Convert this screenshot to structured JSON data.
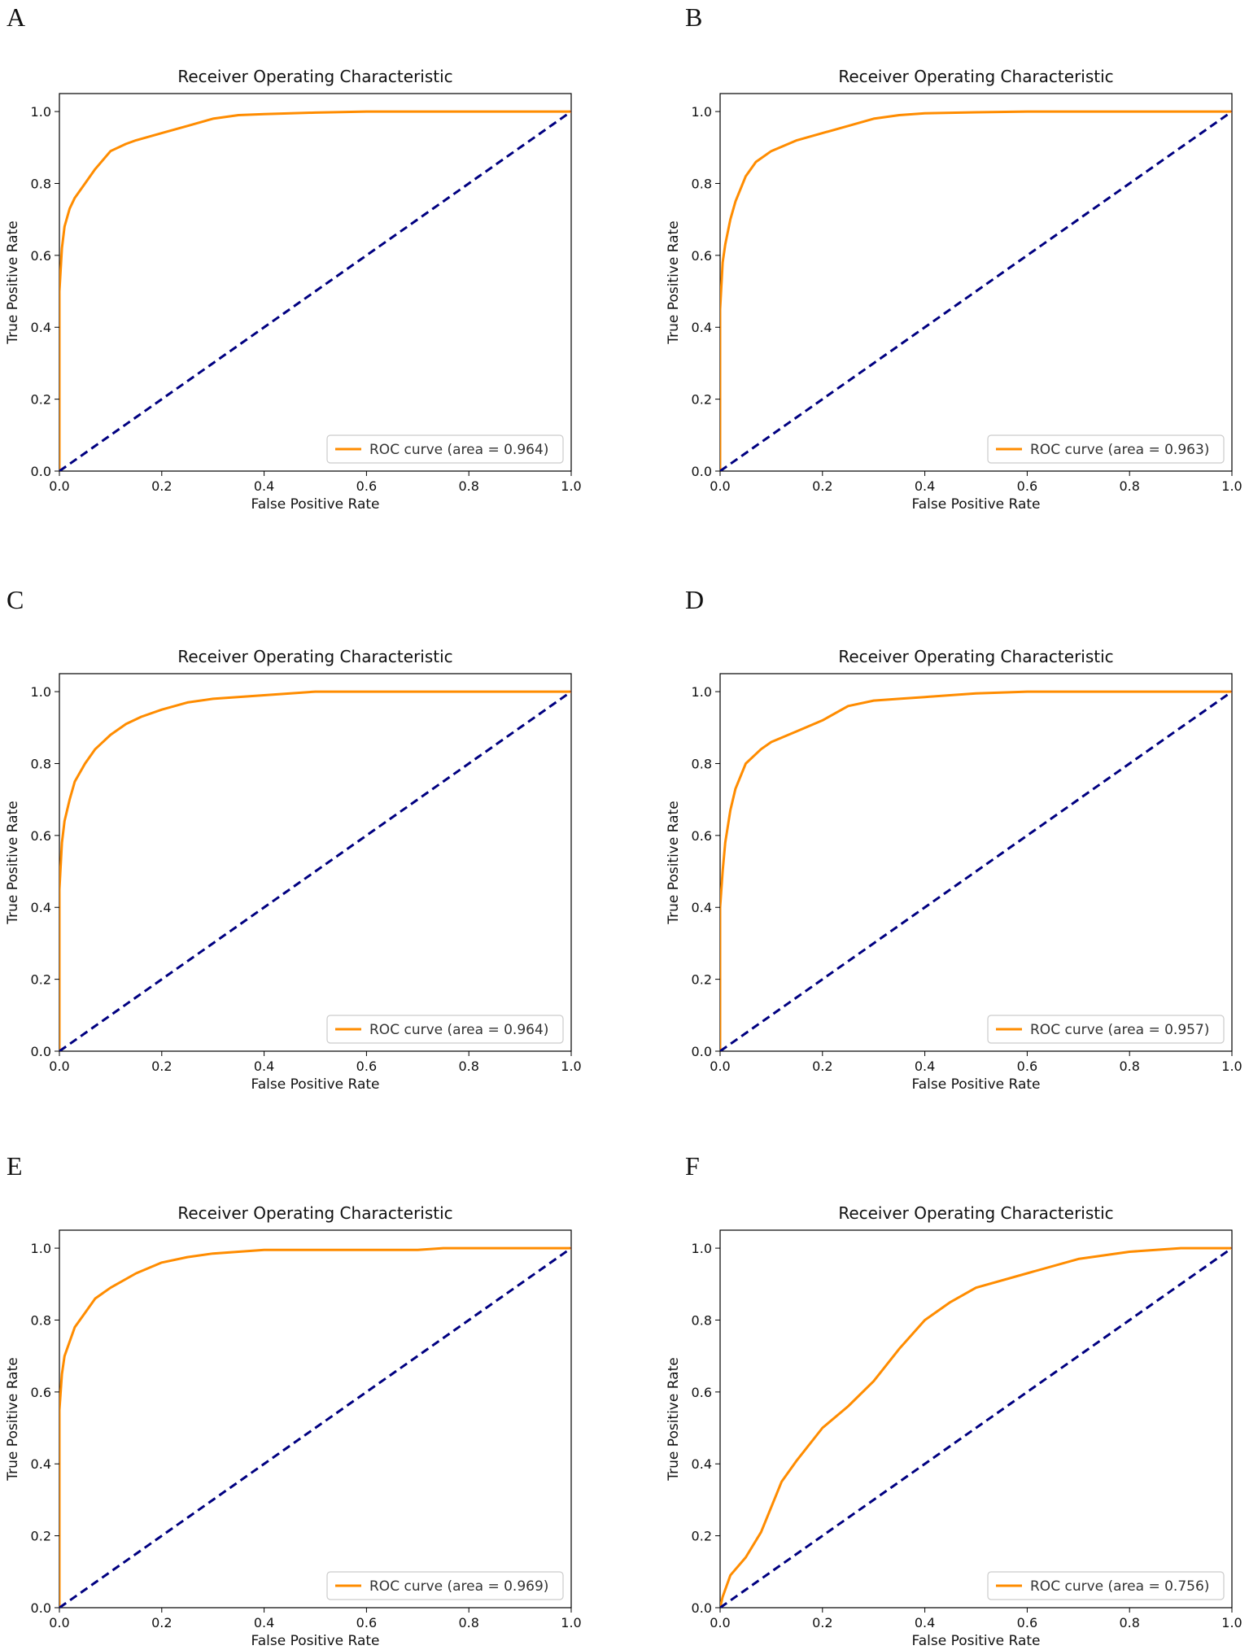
{
  "colors": {
    "roc": "#ff8c00",
    "diagonal": "#000080",
    "axis": "#000000",
    "legend_border": "#cccccc"
  },
  "chart_data": [
    {
      "panel": "A",
      "type": "line",
      "title": "Receiver Operating Characteristic",
      "xlabel": "False Positive Rate",
      "ylabel": "True Positive Rate",
      "xlim": [
        0.0,
        1.0
      ],
      "ylim": [
        0.0,
        1.05
      ],
      "xticks": [
        "0.0",
        "0.2",
        "0.4",
        "0.6",
        "0.8",
        "1.0"
      ],
      "yticks": [
        "0.0",
        "0.2",
        "0.4",
        "0.6",
        "0.8",
        "1.0"
      ],
      "legend": "ROC curve (area = 0.964)",
      "legend_loc": "lower right",
      "series": [
        {
          "name": "ROC curve (area = 0.964)",
          "x": [
            0,
            0,
            0.005,
            0.01,
            0.02,
            0.03,
            0.05,
            0.07,
            0.1,
            0.13,
            0.15,
            0.2,
            0.25,
            0.3,
            0.35,
            0.4,
            0.5,
            0.6,
            0.8,
            1.0
          ],
          "y": [
            0,
            0.5,
            0.62,
            0.68,
            0.73,
            0.76,
            0.8,
            0.84,
            0.89,
            0.91,
            0.92,
            0.94,
            0.96,
            0.98,
            0.99,
            0.993,
            0.997,
            1.0,
            1.0,
            1.0
          ]
        },
        {
          "name": "chance",
          "x": [
            0,
            1
          ],
          "y": [
            0,
            1
          ]
        }
      ]
    },
    {
      "panel": "B",
      "type": "line",
      "title": "Receiver Operating Characteristic",
      "xlabel": "False Positive Rate",
      "ylabel": "True Positive Rate",
      "xlim": [
        0.0,
        1.0
      ],
      "ylim": [
        0.0,
        1.05
      ],
      "xticks": [
        "0.0",
        "0.2",
        "0.4",
        "0.6",
        "0.8",
        "1.0"
      ],
      "yticks": [
        "0.0",
        "0.2",
        "0.4",
        "0.6",
        "0.8",
        "1.0"
      ],
      "legend": "ROC curve (area = 0.963)",
      "legend_loc": "lower right",
      "series": [
        {
          "name": "ROC curve (area = 0.963)",
          "x": [
            0,
            0,
            0.005,
            0.01,
            0.02,
            0.03,
            0.05,
            0.07,
            0.1,
            0.15,
            0.2,
            0.25,
            0.3,
            0.35,
            0.4,
            0.5,
            0.6,
            0.8,
            1.0
          ],
          "y": [
            0,
            0.45,
            0.58,
            0.63,
            0.7,
            0.75,
            0.82,
            0.86,
            0.89,
            0.92,
            0.94,
            0.96,
            0.98,
            0.99,
            0.995,
            0.998,
            1.0,
            1.0,
            1.0
          ]
        },
        {
          "name": "chance",
          "x": [
            0,
            1
          ],
          "y": [
            0,
            1
          ]
        }
      ]
    },
    {
      "panel": "C",
      "type": "line",
      "title": "Receiver Operating Characteristic",
      "xlabel": "False Positive Rate",
      "ylabel": "True Positive Rate",
      "xlim": [
        0.0,
        1.0
      ],
      "ylim": [
        0.0,
        1.05
      ],
      "xticks": [
        "0.0",
        "0.2",
        "0.4",
        "0.6",
        "0.8",
        "1.0"
      ],
      "yticks": [
        "0.0",
        "0.2",
        "0.4",
        "0.6",
        "0.8",
        "1.0"
      ],
      "legend": "ROC curve (area = 0.964)",
      "legend_loc": "lower right",
      "series": [
        {
          "name": "ROC curve (area = 0.964)",
          "x": [
            0,
            0,
            0.005,
            0.01,
            0.02,
            0.03,
            0.05,
            0.07,
            0.1,
            0.13,
            0.16,
            0.2,
            0.25,
            0.3,
            0.4,
            0.5,
            0.6,
            0.8,
            1.0
          ],
          "y": [
            0,
            0.45,
            0.58,
            0.64,
            0.7,
            0.75,
            0.8,
            0.84,
            0.88,
            0.91,
            0.93,
            0.95,
            0.97,
            0.98,
            0.99,
            1.0,
            1.0,
            1.0,
            1.0
          ]
        },
        {
          "name": "chance",
          "x": [
            0,
            1
          ],
          "y": [
            0,
            1
          ]
        }
      ]
    },
    {
      "panel": "D",
      "type": "line",
      "title": "Receiver Operating Characteristic",
      "xlabel": "False Positive Rate",
      "ylabel": "True Positive Rate",
      "xlim": [
        0.0,
        1.0
      ],
      "ylim": [
        0.0,
        1.05
      ],
      "xticks": [
        "0.0",
        "0.2",
        "0.4",
        "0.6",
        "0.8",
        "1.0"
      ],
      "yticks": [
        "0.0",
        "0.2",
        "0.4",
        "0.6",
        "0.8",
        "1.0"
      ],
      "legend": "ROC curve (area = 0.957)",
      "legend_loc": "lower right",
      "series": [
        {
          "name": "ROC curve (area = 0.957)",
          "x": [
            0,
            0,
            0.005,
            0.01,
            0.02,
            0.03,
            0.05,
            0.08,
            0.1,
            0.15,
            0.2,
            0.25,
            0.3,
            0.35,
            0.4,
            0.5,
            0.6,
            0.8,
            1.0
          ],
          "y": [
            0,
            0.4,
            0.5,
            0.58,
            0.67,
            0.73,
            0.8,
            0.84,
            0.86,
            0.89,
            0.92,
            0.96,
            0.975,
            0.98,
            0.985,
            0.995,
            1.0,
            1.0,
            1.0
          ]
        },
        {
          "name": "chance",
          "x": [
            0,
            1
          ],
          "y": [
            0,
            1
          ]
        }
      ]
    },
    {
      "panel": "E",
      "type": "line",
      "title": "Receiver Operating Characteristic",
      "xlabel": "False Positive Rate",
      "ylabel": "True Positive Rate",
      "xlim": [
        0.0,
        1.0
      ],
      "ylim": [
        0.0,
        1.05
      ],
      "xticks": [
        "0.0",
        "0.2",
        "0.4",
        "0.6",
        "0.8",
        "1.0"
      ],
      "yticks": [
        "0.0",
        "0.2",
        "0.4",
        "0.6",
        "0.8",
        "1.0"
      ],
      "legend": "ROC curve (area = 0.969)",
      "legend_loc": "lower right",
      "series": [
        {
          "name": "ROC curve (area = 0.969)",
          "x": [
            0,
            0,
            0.005,
            0.01,
            0.02,
            0.03,
            0.05,
            0.07,
            0.1,
            0.15,
            0.2,
            0.25,
            0.3,
            0.4,
            0.5,
            0.7,
            0.75,
            0.9,
            1.0
          ],
          "y": [
            0,
            0.55,
            0.65,
            0.7,
            0.74,
            0.78,
            0.82,
            0.86,
            0.89,
            0.93,
            0.96,
            0.975,
            0.985,
            0.995,
            0.995,
            0.995,
            1.0,
            1.0,
            1.0
          ]
        },
        {
          "name": "chance",
          "x": [
            0,
            1
          ],
          "y": [
            0,
            1
          ]
        }
      ]
    },
    {
      "panel": "F",
      "type": "line",
      "title": "Receiver Operating Characteristic",
      "xlabel": "False Positive Rate",
      "ylabel": "True Positive Rate",
      "xlim": [
        0.0,
        1.0
      ],
      "ylim": [
        0.0,
        1.05
      ],
      "xticks": [
        "0.0",
        "0.2",
        "0.4",
        "0.6",
        "0.8",
        "1.0"
      ],
      "yticks": [
        "0.0",
        "0.2",
        "0.4",
        "0.6",
        "0.8",
        "1.0"
      ],
      "legend": "ROC curve (area = 0.756)",
      "legend_loc": "lower right",
      "series": [
        {
          "name": "ROC curve (area = 0.756)",
          "x": [
            0,
            0.005,
            0.02,
            0.05,
            0.08,
            0.1,
            0.12,
            0.15,
            0.2,
            0.25,
            0.3,
            0.35,
            0.4,
            0.45,
            0.5,
            0.6,
            0.7,
            0.8,
            0.9,
            1.0
          ],
          "y": [
            0,
            0.03,
            0.09,
            0.14,
            0.21,
            0.28,
            0.35,
            0.41,
            0.5,
            0.56,
            0.63,
            0.72,
            0.8,
            0.85,
            0.89,
            0.93,
            0.97,
            0.99,
            1.0,
            1.0
          ]
        },
        {
          "name": "chance",
          "x": [
            0,
            1
          ],
          "y": [
            0,
            1
          ]
        }
      ]
    }
  ]
}
